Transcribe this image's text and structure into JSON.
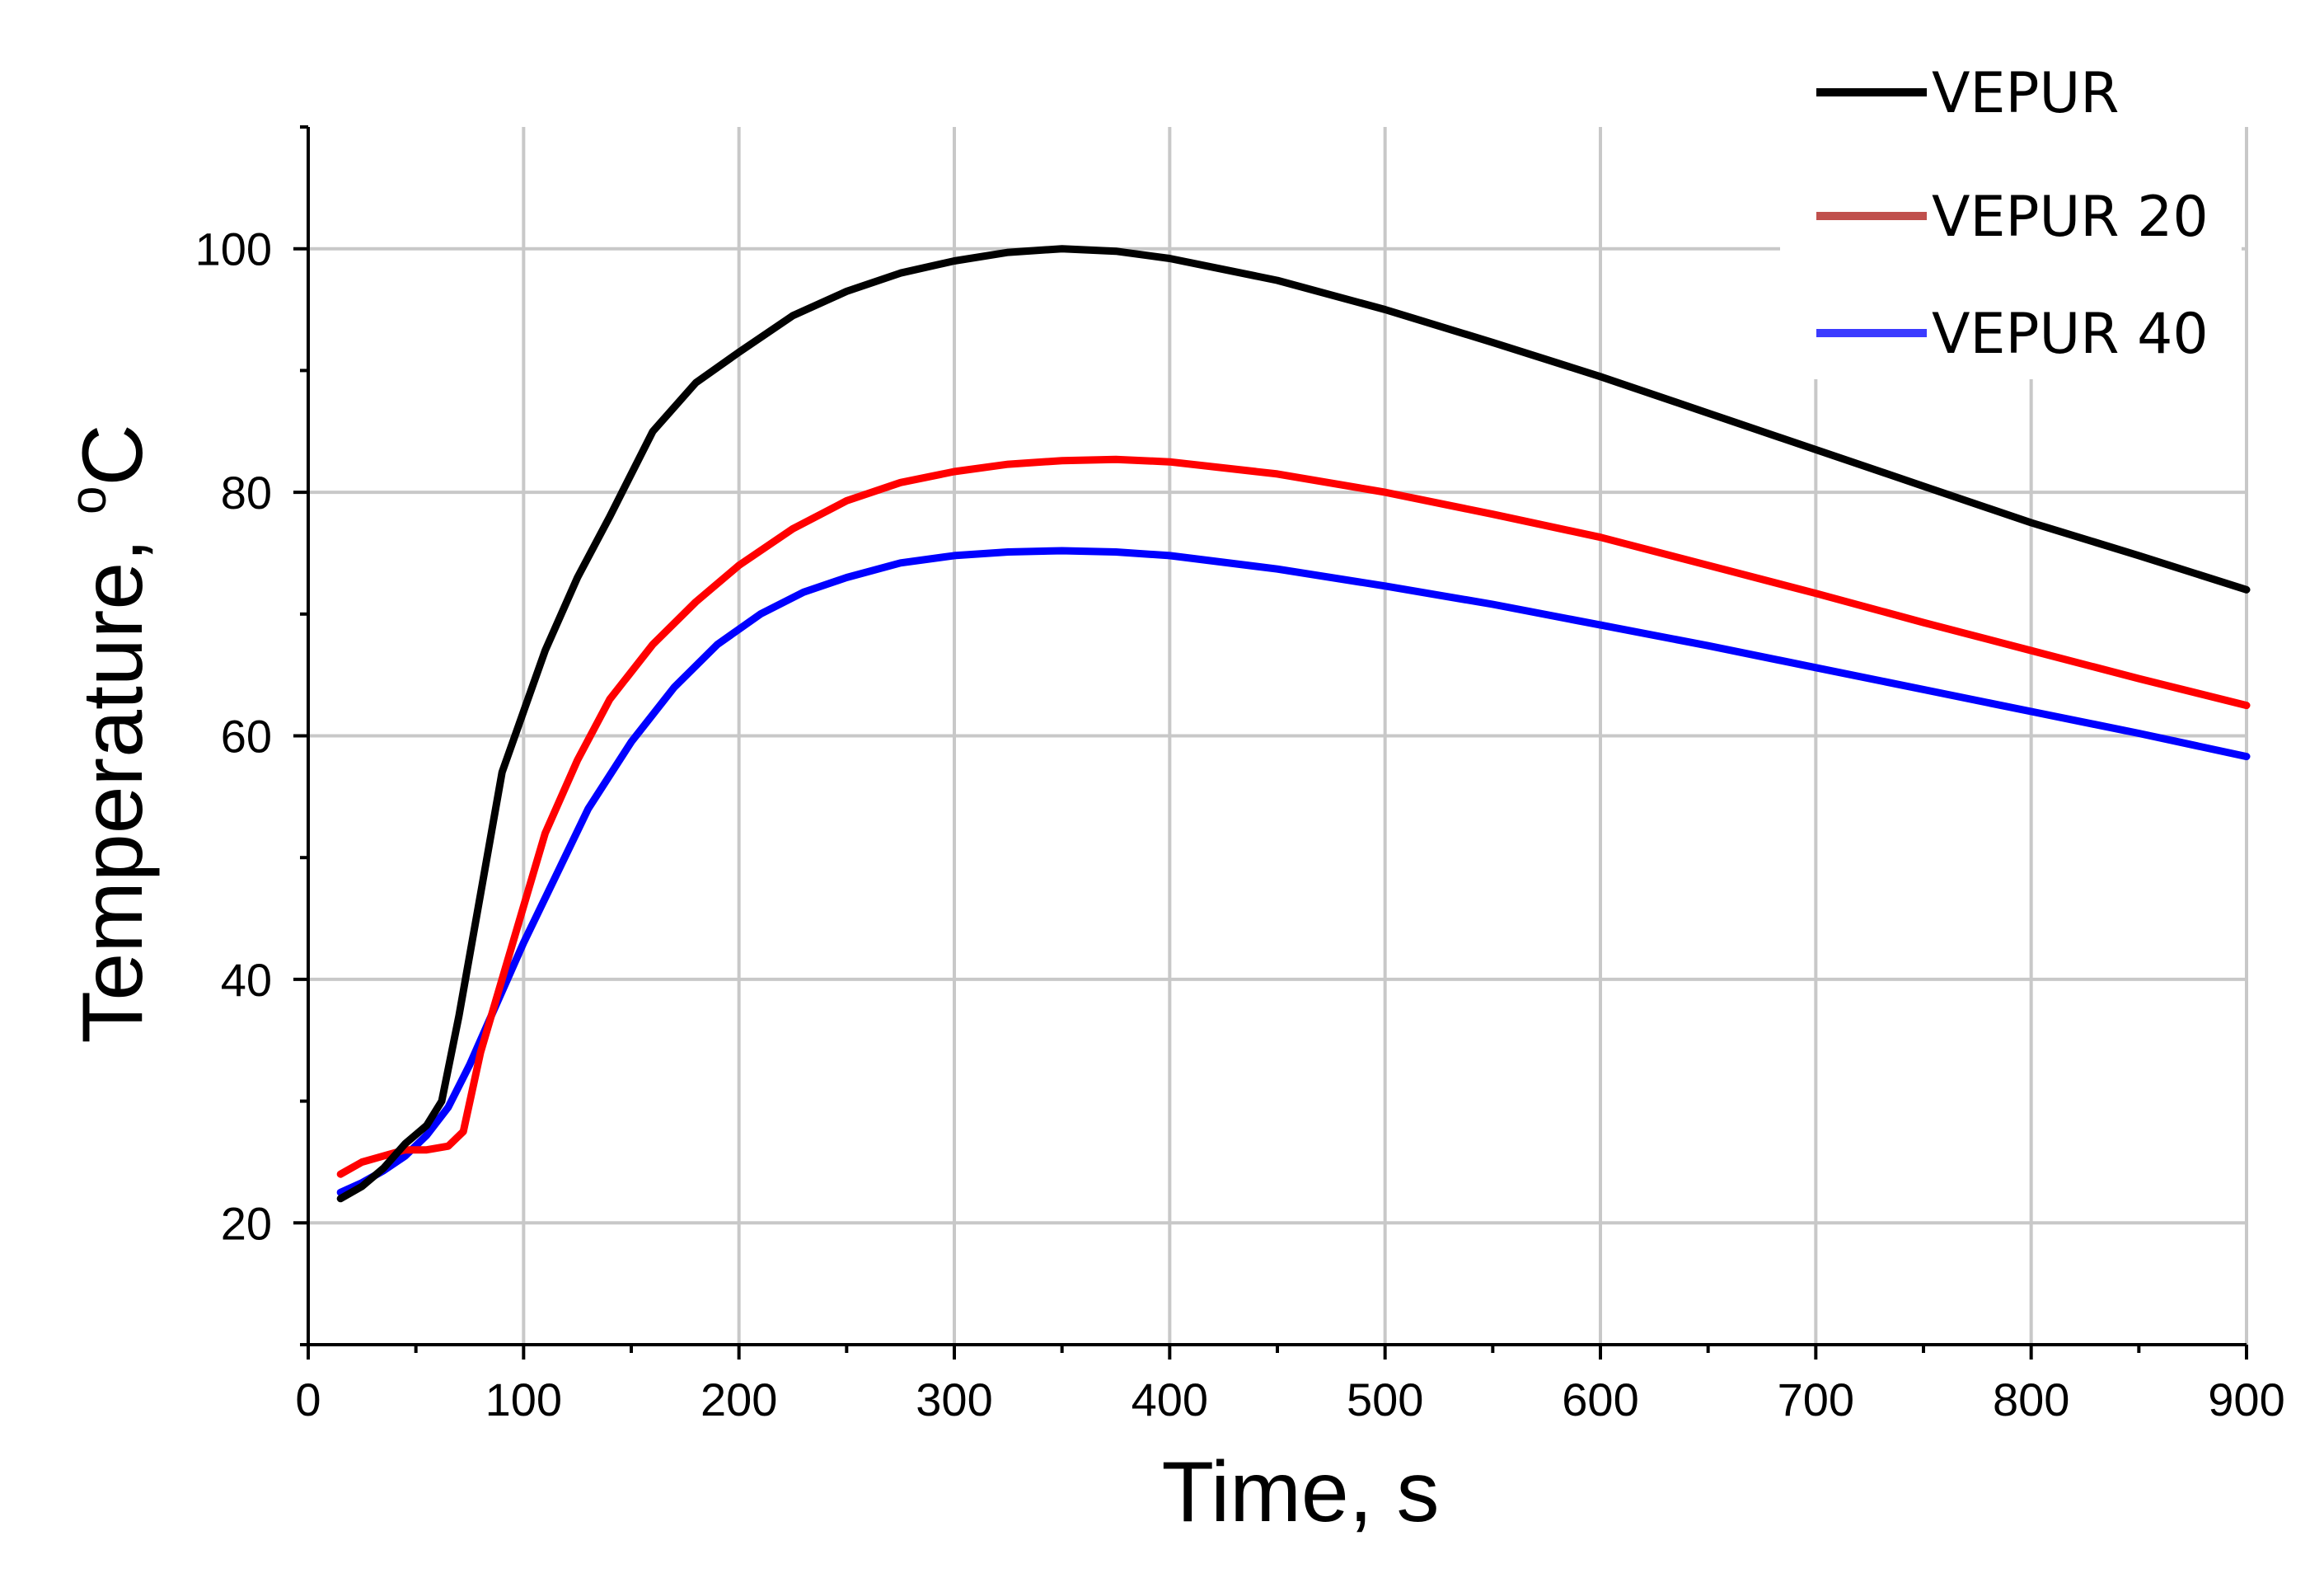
{
  "chart_data": {
    "type": "line",
    "title": "",
    "xlabel": "Time, s",
    "ylabel_main": "Temperature, ",
    "ylabel_unit_sup": "o",
    "ylabel_unit": "C",
    "xlim": [
      0,
      900
    ],
    "ylim": [
      10,
      110
    ],
    "xticks": [
      0,
      100,
      200,
      300,
      400,
      500,
      600,
      700,
      800,
      900
    ],
    "yticks": [
      20,
      40,
      60,
      80,
      100
    ],
    "grid": true,
    "legend_position": "top-right",
    "series": [
      {
        "name": "VEPUR",
        "color": "#000000",
        "x": [
          15,
          25,
          35,
          45,
          55,
          62,
          70,
          80,
          90,
          100,
          110,
          125,
          140,
          160,
          180,
          200,
          225,
          250,
          275,
          300,
          325,
          350,
          375,
          400,
          450,
          500,
          550,
          600,
          650,
          700,
          750,
          800,
          850,
          900
        ],
        "y": [
          22,
          23,
          24.5,
          26.5,
          28,
          30,
          37,
          47,
          57,
          62,
          67,
          73,
          78,
          85,
          89,
          91.5,
          94.5,
          96.5,
          98,
          99,
          99.7,
          100,
          99.8,
          99.2,
          97.4,
          95,
          92.3,
          89.5,
          86.5,
          83.5,
          80.5,
          77.5,
          74.8,
          72
        ]
      },
      {
        "name": "VEPUR 20",
        "color": "#ff0000",
        "legend_color": "#c0504d",
        "x": [
          15,
          25,
          35,
          45,
          55,
          65,
          72,
          80,
          90,
          100,
          110,
          125,
          140,
          160,
          180,
          200,
          225,
          250,
          275,
          300,
          325,
          350,
          375,
          400,
          450,
          500,
          550,
          600,
          650,
          700,
          750,
          800,
          850,
          900
        ],
        "y": [
          24,
          25,
          25.5,
          26,
          26,
          26.3,
          27.5,
          34,
          40,
          46,
          52,
          58,
          63,
          67.5,
          71,
          74,
          77,
          79.3,
          80.8,
          81.7,
          82.3,
          82.6,
          82.7,
          82.5,
          81.5,
          80,
          78.2,
          76.3,
          74,
          71.7,
          69.3,
          67,
          64.7,
          62.5
        ]
      },
      {
        "name": "VEPUR 40",
        "color": "#0000ff",
        "legend_color": "#3b3bff",
        "x": [
          15,
          25,
          35,
          45,
          55,
          65,
          75,
          85,
          100,
          115,
          130,
          150,
          170,
          190,
          210,
          230,
          250,
          275,
          300,
          325,
          350,
          375,
          400,
          450,
          500,
          550,
          600,
          650,
          700,
          750,
          800,
          850,
          900
        ],
        "y": [
          22.5,
          23.3,
          24.3,
          25.5,
          27.2,
          29.5,
          33,
          37,
          43,
          48.5,
          54,
          59.5,
          64,
          67.5,
          70,
          71.8,
          73,
          74.2,
          74.8,
          75.1,
          75.2,
          75.1,
          74.8,
          73.7,
          72.3,
          70.8,
          69.1,
          67.4,
          65.6,
          63.8,
          62,
          60.2,
          58.3
        ]
      }
    ]
  }
}
